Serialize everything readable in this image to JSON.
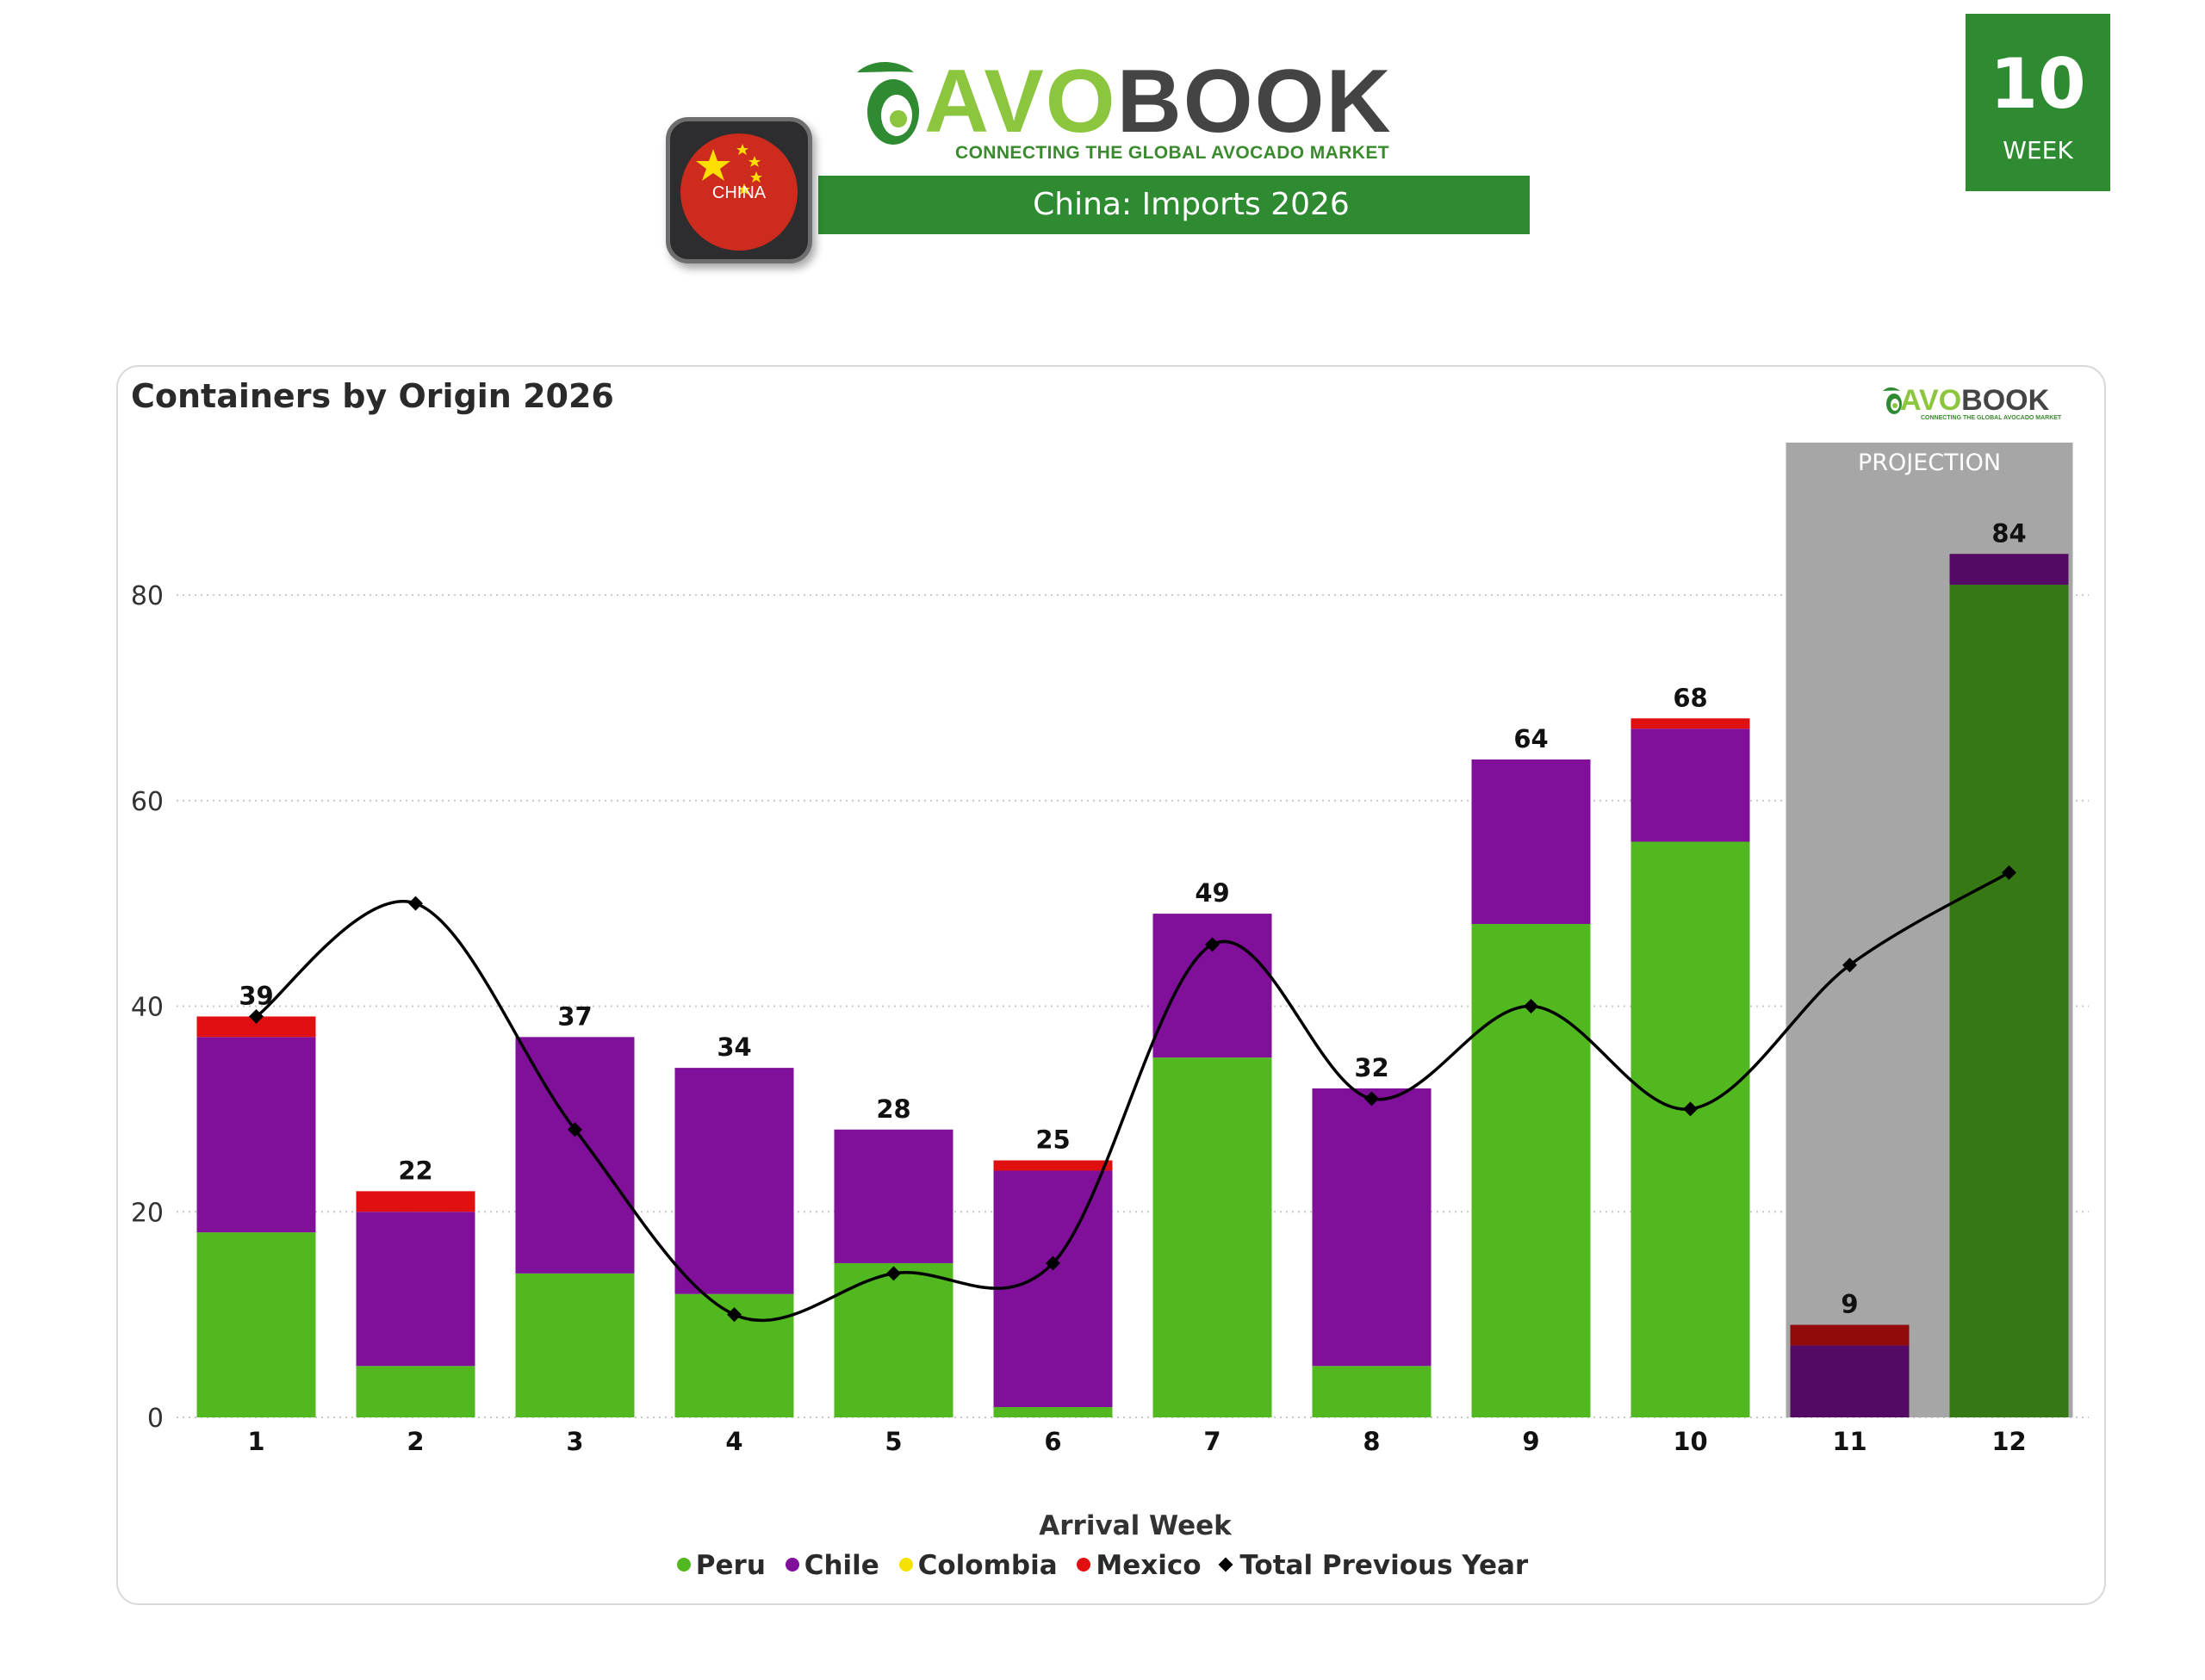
{
  "header": {
    "logo": {
      "brand_part1": "AVO",
      "brand_part2": "BOOK",
      "tagline": "CONNECTING THE GLOBAL AVOCADO MARKET"
    },
    "flag": {
      "label": "CHINA"
    },
    "title": "China: Imports 2026",
    "week": {
      "number": "10",
      "label": "WEEK"
    }
  },
  "chart_data": {
    "type": "bar",
    "stacked": true,
    "title": "Containers by Origin 2026",
    "xlabel": "Arrival Week",
    "ylabel": "",
    "categories": [
      "1",
      "2",
      "3",
      "4",
      "5",
      "6",
      "7",
      "8",
      "9",
      "10",
      "11",
      "12"
    ],
    "ylim": [
      0,
      90
    ],
    "yticks": [
      0,
      20,
      40,
      60,
      80
    ],
    "grid": "horizontal dotted",
    "series": [
      {
        "name": "Peru",
        "color": "#52b81f",
        "values": [
          18,
          5,
          14,
          12,
          15,
          1,
          35,
          5,
          48,
          56,
          0,
          81
        ]
      },
      {
        "name": "Chile",
        "color": "#800f9a",
        "values": [
          19,
          15,
          23,
          22,
          13,
          23,
          14,
          27,
          16,
          11,
          7,
          3
        ]
      },
      {
        "name": "Colombia",
        "color": "#f5e100",
        "values": [
          0,
          0,
          0,
          0,
          0,
          0,
          0,
          0,
          0,
          0,
          0,
          0
        ]
      },
      {
        "name": "Mexico",
        "color": "#e01010",
        "values": [
          2,
          2,
          0,
          0,
          0,
          1,
          0,
          0,
          0,
          1,
          2,
          0
        ]
      }
    ],
    "totals": [
      39,
      22,
      37,
      34,
      28,
      25,
      49,
      32,
      64,
      68,
      9,
      84
    ],
    "line_series": {
      "name": "Total Previous Year",
      "color": "#000000",
      "values": [
        39,
        50,
        28,
        10,
        14,
        15,
        46,
        31,
        40,
        30,
        44,
        53
      ]
    },
    "projection": {
      "label": "PROJECTION",
      "categories": [
        "11",
        "12"
      ]
    },
    "legend": {
      "position": "bottom"
    }
  }
}
